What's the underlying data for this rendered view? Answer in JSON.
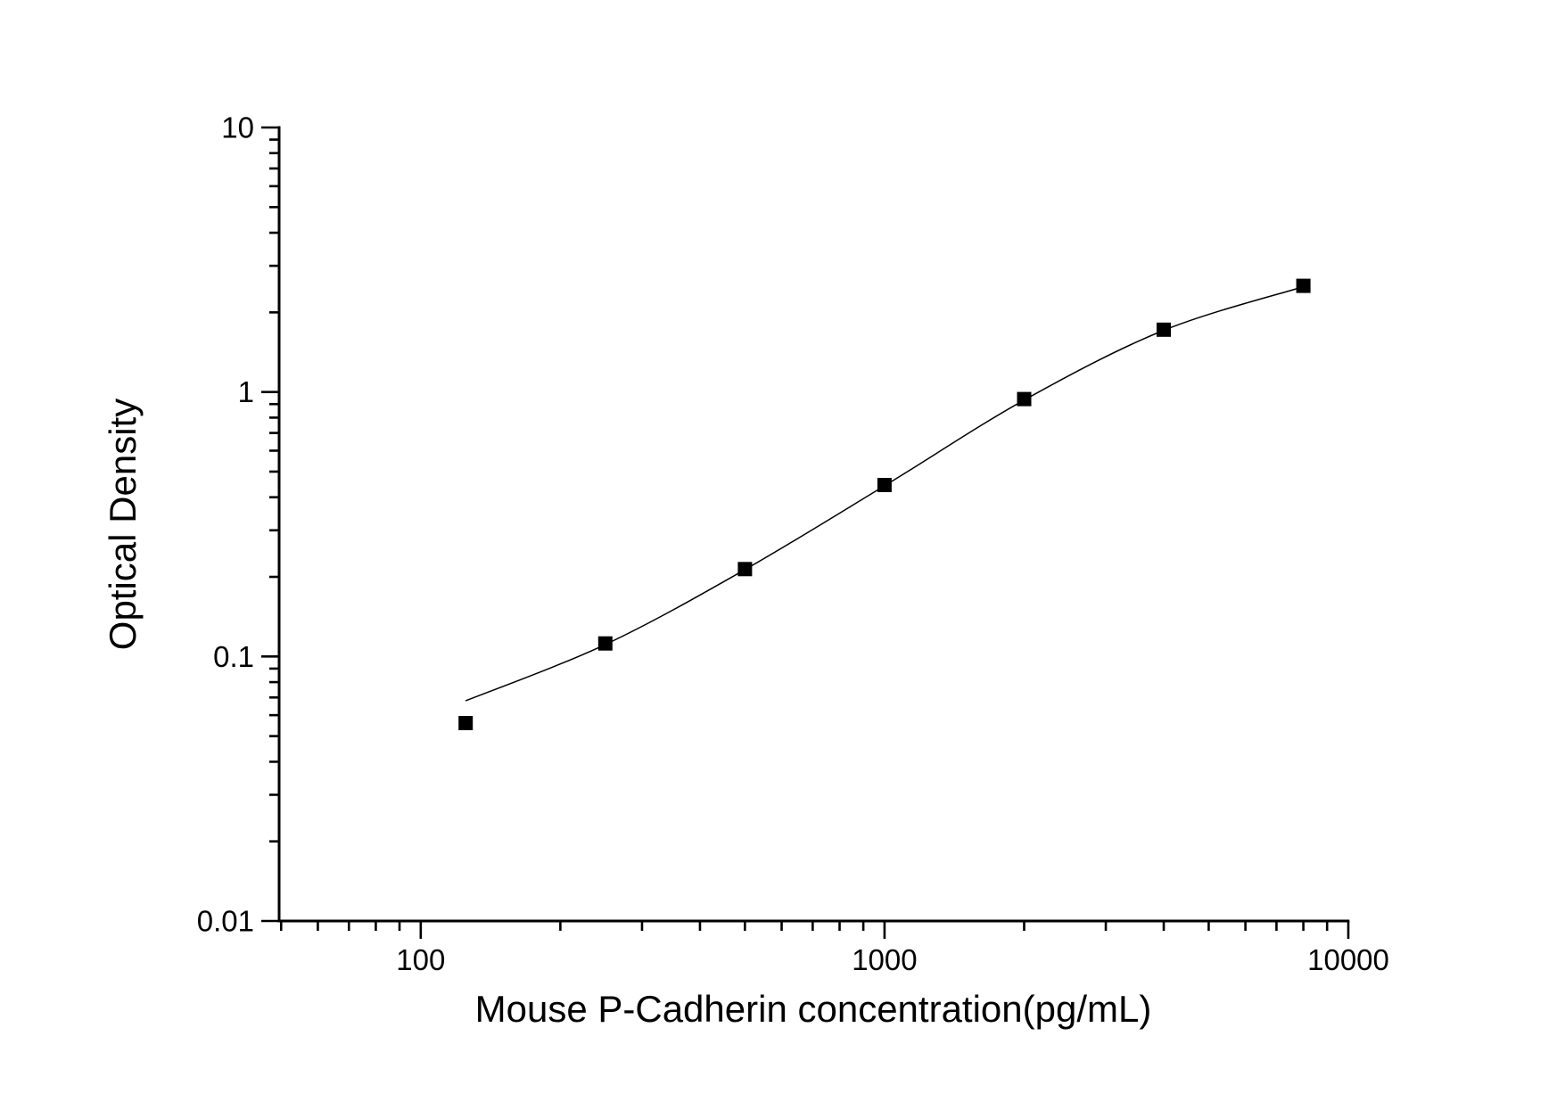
{
  "page": {
    "background": "#ffffff"
  },
  "chart_data": {
    "type": "scatter",
    "title": "",
    "xlabel": "Mouse P-Cadherin concentration(pg/mL)",
    "ylabel": "Optical Density",
    "x_scale": "log",
    "y_scale": "log",
    "xlim": [
      49.5,
      10000
    ],
    "ylim": [
      0.01,
      10
    ],
    "grid": false,
    "legend_position": "none",
    "x_ticks": [
      {
        "value": 100,
        "label": "100"
      },
      {
        "value": 1000,
        "label": "1000"
      },
      {
        "value": 10000,
        "label": "10000"
      }
    ],
    "y_ticks": [
      {
        "value": 10,
        "label": "10"
      },
      {
        "value": 1,
        "label": "1"
      },
      {
        "value": 0.1,
        "label": "0.1"
      },
      {
        "value": 0.01,
        "label": "0.01"
      }
    ],
    "series": [
      {
        "name": "standard-points",
        "marker": "filled-square",
        "marker_size_px": 16,
        "color": "#000000",
        "points": [
          {
            "x": 125,
            "y": 0.056
          },
          {
            "x": 250,
            "y": 0.112
          },
          {
            "x": 500,
            "y": 0.214
          },
          {
            "x": 1000,
            "y": 0.445
          },
          {
            "x": 2000,
            "y": 0.94
          },
          {
            "x": 4000,
            "y": 1.72
          },
          {
            "x": 8000,
            "y": 2.52
          }
        ]
      }
    ],
    "fit_curve": {
      "name": "4pl-fit-line",
      "color": "#000000",
      "points": [
        {
          "x": 125,
          "y": 0.068
        },
        {
          "x": 250,
          "y": 0.111
        },
        {
          "x": 500,
          "y": 0.213
        },
        {
          "x": 1000,
          "y": 0.442
        },
        {
          "x": 2000,
          "y": 0.932
        },
        {
          "x": 4000,
          "y": 1.71
        },
        {
          "x": 8000,
          "y": 2.5
        }
      ]
    },
    "colors": {
      "axis": "#000000",
      "text": "#000000",
      "marker": "#000000",
      "line": "#000000",
      "background": "#ffffff"
    }
  }
}
